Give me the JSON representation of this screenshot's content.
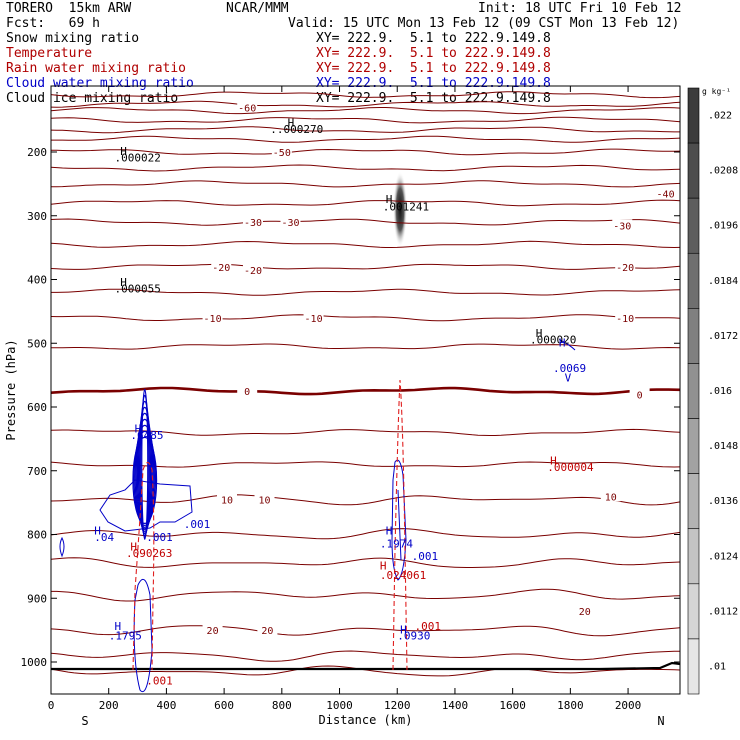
{
  "header": {
    "model": "TORERO  15km ARW",
    "org": "NCAR/MMM",
    "init": "Init: 18 UTC Fri 10 Feb 12",
    "fcst": "Fcst:   69 h",
    "valid": "Valid: 15 UTC Mon 13 Feb 12 (09 CST Mon 13 Feb 12)"
  },
  "fields": [
    {
      "label": "Snow mixing ratio",
      "xy": "XY= 222.9.  5.1 to 222.9.149.8",
      "color": "#000000"
    },
    {
      "label": "Temperature",
      "xy": "XY= 222.9.  5.1 to 222.9.149.8",
      "color": "#b00000"
    },
    {
      "label": "Rain water mixing ratio",
      "xy": "XY= 222.9.  5.1 to 222.9.149.8",
      "color": "#b00000"
    },
    {
      "label": "Cloud water mixing ratio",
      "xy": "XY= 222.9.  5.1 to 222.9.149.8",
      "color": "#0000c8"
    },
    {
      "label": "Cloud ice mixing ratio",
      "xy": "XY= 222.9.  5.1 to 222.9.149.8",
      "color": "#000000"
    }
  ],
  "chart_data": {
    "type": "cross-section contour",
    "xlabel": "Distance (km)",
    "ylabel": "Pressure (hPa)",
    "x_ticks": [
      0,
      200,
      400,
      600,
      800,
      1000,
      1200,
      1400,
      1600,
      1800,
      2000
    ],
    "y_ticks": [
      200,
      300,
      400,
      500,
      600,
      700,
      800,
      900,
      1000
    ],
    "xlim": [
      0,
      2180
    ],
    "ylim": [
      1050,
      100
    ],
    "end_labels": {
      "left": "S",
      "right": "N"
    },
    "colorbar": {
      "unit": "g kg⁻¹",
      "ticks": [
        ".022",
        ".0208",
        ".0196",
        ".0184",
        ".0172",
        ".016",
        ".0148",
        ".0136",
        ".0124",
        ".0112",
        ".01"
      ]
    },
    "temperature_labels": [
      {
        "x": 680,
        "p": 130,
        "v": "-60"
      },
      {
        "x": 800,
        "p": 200,
        "v": "-50"
      },
      {
        "x": 2130,
        "p": 265,
        "v": "-40"
      },
      {
        "x": 700,
        "p": 310,
        "v": "-30"
      },
      {
        "x": 830,
        "p": 310,
        "v": "-30"
      },
      {
        "x": 1980,
        "p": 315,
        "v": "-30"
      },
      {
        "x": 590,
        "p": 380,
        "v": "-20"
      },
      {
        "x": 700,
        "p": 385,
        "v": "-20"
      },
      {
        "x": 1990,
        "p": 380,
        "v": "-20"
      },
      {
        "x": 560,
        "p": 460,
        "v": "-10"
      },
      {
        "x": 910,
        "p": 460,
        "v": "-10"
      },
      {
        "x": 1990,
        "p": 460,
        "v": "-10"
      },
      {
        "x": 680,
        "p": 575,
        "v": "0"
      },
      {
        "x": 2040,
        "p": 580,
        "v": "0"
      },
      {
        "x": 610,
        "p": 745,
        "v": "10"
      },
      {
        "x": 740,
        "p": 745,
        "v": "10"
      },
      {
        "x": 1940,
        "p": 740,
        "v": "10"
      },
      {
        "x": 1850,
        "p": 920,
        "v": "20"
      },
      {
        "x": 560,
        "p": 950,
        "v": "20"
      },
      {
        "x": 750,
        "p": 950,
        "v": "20"
      }
    ],
    "maxima_labels": [
      {
        "x": 820,
        "p": 160,
        "v": "H",
        "c": "k"
      },
      {
        "x": 760,
        "p": 170,
        "v": "..000270",
        "c": "k"
      },
      {
        "x": 240,
        "p": 205,
        "v": "H",
        "c": "k"
      },
      {
        "x": 220,
        "p": 215,
        "v": ".000022",
        "c": "k"
      },
      {
        "x": 1160,
        "p": 280,
        "v": "H",
        "c": "k"
      },
      {
        "x": 1150,
        "p": 292,
        "v": ".001241",
        "c": "k"
      },
      {
        "x": 240,
        "p": 410,
        "v": "H",
        "c": "k"
      },
      {
        "x": 220,
        "p": 420,
        "v": ".000055",
        "c": "k"
      },
      {
        "x": 1680,
        "p": 490,
        "v": "H",
        "c": "k"
      },
      {
        "x": 1660,
        "p": 500,
        "v": ".000020",
        "c": "k"
      },
      {
        "x": 1760,
        "p": 505,
        "v": "H",
        "c": "b"
      },
      {
        "x": 1740,
        "p": 545,
        "v": ".0069",
        "c": "b"
      },
      {
        "x": 1780,
        "p": 560,
        "v": "V",
        "c": "b"
      },
      {
        "x": 290,
        "p": 640,
        "v": "H",
        "c": "b"
      },
      {
        "x": 275,
        "p": 650,
        "v": ".6485",
        "c": "b"
      },
      {
        "x": 1730,
        "p": 690,
        "v": "H",
        "c": "r"
      },
      {
        "x": 1720,
        "p": 700,
        "v": ".000004",
        "c": "r"
      },
      {
        "x": 150,
        "p": 800,
        "v": "H",
        "c": "b"
      },
      {
        "x": 150,
        "p": 810,
        "v": ".04",
        "c": "b"
      },
      {
        "x": 330,
        "p": 810,
        "v": ".001",
        "c": "b"
      },
      {
        "x": 460,
        "p": 790,
        "v": ".001",
        "c": "b"
      },
      {
        "x": 1160,
        "p": 800,
        "v": "H",
        "c": "b"
      },
      {
        "x": 1140,
        "p": 820,
        "v": ".1974",
        "c": "b"
      },
      {
        "x": 1250,
        "p": 840,
        "v": ".001",
        "c": "b"
      },
      {
        "x": 275,
        "p": 825,
        "v": "H",
        "c": "r"
      },
      {
        "x": 260,
        "p": 835,
        "v": ".090263",
        "c": "r"
      },
      {
        "x": 1140,
        "p": 855,
        "v": "H",
        "c": "r"
      },
      {
        "x": 1140,
        "p": 870,
        "v": ".024061",
        "c": "r"
      },
      {
        "x": 1260,
        "p": 950,
        "v": ".001",
        "c": "r"
      },
      {
        "x": 220,
        "p": 950,
        "v": "H",
        "c": "b"
      },
      {
        "x": 200,
        "p": 965,
        "v": ".1795",
        "c": "b"
      },
      {
        "x": 1210,
        "p": 955,
        "v": "H",
        "c": "b"
      },
      {
        "x": 1200,
        "p": 965,
        "v": ".0930",
        "c": "b"
      },
      {
        "x": 330,
        "p": 1035,
        "v": ".001",
        "c": "r"
      }
    ]
  }
}
